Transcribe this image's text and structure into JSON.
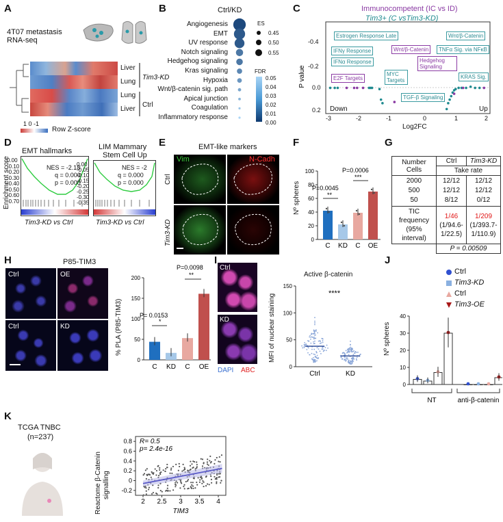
{
  "panels": {
    "A": "A",
    "B": "B",
    "C": "C",
    "D": "D",
    "E": "E",
    "F": "F",
    "G": "G",
    "H": "H",
    "I": "I",
    "J": "J",
    "K": "K"
  },
  "a": {
    "title_line1": "4T07 metastasis",
    "title_line2": "RNA-seq",
    "rows": [
      "Liver",
      "Lung",
      "Lung",
      "Liver"
    ],
    "group_kd": "Tim3-KD",
    "group_ctrl": "Ctrl",
    "scale_ticks": "1  0 -1",
    "scale_label": "Row Z-score"
  },
  "b": {
    "title": "Ctrl/KD",
    "pathways": [
      "Angiogenesis",
      "EMT",
      "UV response",
      "Notch signaling",
      "Hedgehog signaling",
      "Kras signaling",
      "Hypoxia",
      "Wnt/β-catenin sig. path",
      "Apical junction",
      "Coagulation",
      "Inflammatory response"
    ],
    "dot_sizes": [
      0.57,
      0.55,
      0.53,
      0.49,
      0.48,
      0.46,
      0.45,
      0.43,
      0.42,
      0.41,
      0.4
    ],
    "fdr_values": [
      0.005,
      0.01,
      0.01,
      0.02,
      0.02,
      0.025,
      0.03,
      0.035,
      0.04,
      0.045,
      0.05
    ],
    "es_label": "ES",
    "es_ticks": [
      "0.45",
      "0.50",
      "0.55"
    ],
    "fdr_label": "FDR",
    "fdr_ticks": [
      "0.05",
      "0.04",
      "0.03",
      "0.02",
      "0.01",
      "0.00"
    ]
  },
  "c": {
    "title1": "Immunocompetent (IC vs ID)",
    "title2": "Tim3+ (C vsTim3-KD)",
    "ylabel": "P value",
    "xlabel": "Log2FC",
    "yticks": [
      "-0.4",
      "-0.2",
      "0.0",
      "0.2"
    ],
    "xticks": [
      "-3",
      "-2",
      "-1",
      "0",
      "1",
      "2"
    ],
    "down": "Down",
    "up": "Up",
    "labels_teal": [
      "Estrogen Response Late",
      "IFNγ Response",
      "IFNα Response",
      "MYC Targets",
      "TGF-β Signaling",
      "Wnt/β-Catenin",
      "TNFα Sig. via NFκB",
      "KRAS Sig."
    ],
    "labels_purple": [
      "E2F Targets",
      "Wnt/β-Catenin",
      "Hedgehog Signaling"
    ]
  },
  "d": {
    "ylabel": "Enrichment score",
    "left_title": "EMT hallmarks",
    "left_stats": [
      "NES = -2.18",
      "q = 0.000",
      "p = 0.000"
    ],
    "left_yticks": [
      "0.00",
      "-0.10",
      "-0.20",
      "-0.30",
      "-0.40",
      "-0.50",
      "-0.60",
      "-0.70"
    ],
    "right_title_1": "LIM Mammary",
    "right_title_2": "Stem Cell Up",
    "right_stats": [
      "NES = -2",
      "q = 0.000",
      "p = 0.000"
    ],
    "right_yticks": [
      "0.00",
      "-0.05",
      "-0.10",
      "-0.15",
      "-0.20",
      "-0.25",
      "-0.30",
      "-0.35"
    ],
    "xlabel": "Tim3-KD vs Ctrl"
  },
  "e": {
    "title": "EMT-like markers",
    "vim": "Vim",
    "ncadh": "N-Cadh",
    "row1": "Ctrl",
    "row2": "Tim3-KD"
  },
  "f": {
    "ylabel": "Nº spheres",
    "yticks": [
      "100",
      "80",
      "60",
      "40",
      "20",
      "0"
    ],
    "categories": [
      "C",
      "KD",
      "C",
      "OE"
    ],
    "values": [
      42,
      22,
      39,
      70
    ],
    "p1": "P=0.0045",
    "p2": "P=0.0006",
    "star1": "**",
    "star2": "***"
  },
  "g": {
    "h_number_cells": "Number Cells",
    "h_ctrl": "Ctrl",
    "h_kd": "Tim3-KD",
    "h_take": "Take rate",
    "cells": [
      "2000",
      "500",
      "50"
    ],
    "ctrl": [
      "12/12",
      "12/12",
      "8/12"
    ],
    "kd": [
      "12/12",
      "12/12",
      "0/12"
    ],
    "tic_label_1": "TIC frequency",
    "tic_label_2": "(95% interval)",
    "ctrl_tic": "1/46",
    "ctrl_ci_1": "(1/94.6-",
    "ctrl_ci_2": "1/22.5)",
    "kd_tic": "1/209",
    "kd_ci_1": "(1/393.7-",
    "kd_ci_2": "1/110.9)",
    "p": "P = 0.00509"
  },
  "h": {
    "title": "P85-TIM3",
    "tiles": [
      "Ctrl",
      "OE",
      "Ctrl",
      "KD"
    ],
    "ylabel": "% PLA (P85-TIM3)",
    "yticks": [
      "200",
      "150",
      "100",
      "50",
      "0"
    ],
    "categories": [
      "C",
      "KD",
      "C",
      "OE"
    ],
    "values": [
      44,
      17,
      53,
      161
    ],
    "p1": "P= 0.0153",
    "p2": "P=0.0098",
    "star1": "*",
    "star2": "**"
  },
  "i": {
    "tiles": [
      "Ctrl",
      "KD"
    ],
    "dapi": "DAPI",
    "abc": "ABC",
    "title": "Active β-catenin",
    "ylabel": "MFI of nuclear staining",
    "yticks": [
      "150",
      "100",
      "50",
      "0"
    ],
    "categories": [
      "Ctrl",
      "KD"
    ],
    "medians": [
      38,
      20
    ],
    "sig": "****"
  },
  "j": {
    "ylabel": "Nº spheres",
    "yticks": [
      "40",
      "30",
      "20",
      "10",
      "0"
    ],
    "legend": [
      "Ctrl",
      "Tim3-KD",
      "Ctrl",
      "Tim3-OE"
    ],
    "values": [
      3,
      2,
      7,
      30,
      0,
      0,
      0,
      4
    ],
    "group1": "NT",
    "group2": "anti-β-catenin"
  },
  "k": {
    "title": "TCGA TNBC",
    "n": "(n=237)",
    "ylabel_1": "Reactome β-Catenin",
    "ylabel_2": "signalling",
    "xlabel": "TIM3",
    "stat_r": "R= 0.5",
    "stat_p": "p= 2.4e-16",
    "xticks": [
      "2",
      "2.5",
      "3",
      "3.5",
      "4"
    ],
    "yticks": [
      "0.8",
      "0.6",
      "0.4",
      "0.2",
      "0",
      "-0.2"
    ]
  },
  "colors": {
    "teal": "#1f8a8f",
    "purple": "#8a3aa3",
    "blue": "#1f6fbf",
    "lightblue": "#a6c8e8",
    "pink": "#e8a8a0",
    "darkred": "#c0504d",
    "regline": "#5a5ac8"
  }
}
